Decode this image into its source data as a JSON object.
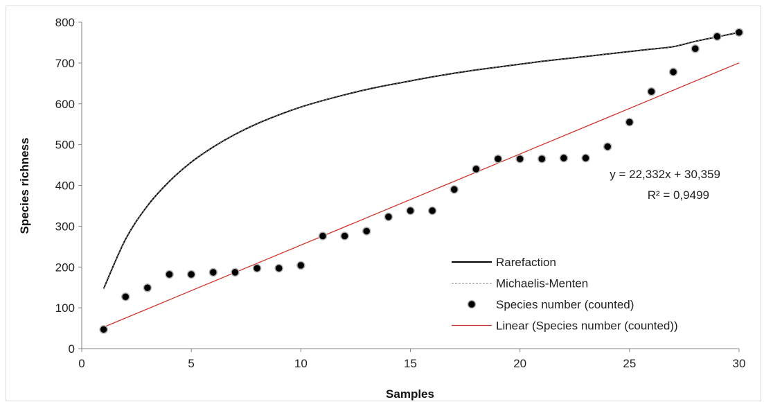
{
  "chart_data": {
    "type": "scatter",
    "title": "",
    "xlabel": "Samples",
    "ylabel": "Species richness",
    "xlim": [
      0,
      30
    ],
    "ylim": [
      0,
      800
    ],
    "xticks": [
      0,
      5,
      10,
      15,
      20,
      25,
      30
    ],
    "xtick_labels": [
      "0",
      "5",
      "10",
      "15",
      "20",
      "25",
      "30"
    ],
    "yticks": [
      0,
      100,
      200,
      300,
      400,
      500,
      600,
      700,
      800
    ],
    "ytick_labels": [
      "0",
      "100",
      "200",
      "300",
      "400",
      "500",
      "600",
      "700",
      "800"
    ],
    "grid": false,
    "legend_position": "bottom-right",
    "series": [
      {
        "name": "Rarefaction",
        "kind": "line",
        "color": "#000000",
        "x": [
          1,
          2,
          3,
          4,
          5,
          6,
          7,
          8,
          9,
          10,
          11,
          12,
          13,
          14,
          15,
          16,
          17,
          18,
          19,
          20,
          21,
          22,
          23,
          24,
          25,
          26,
          27,
          28,
          29,
          30
        ],
        "y": [
          147,
          268,
          350,
          410,
          457,
          494,
          525,
          551,
          573,
          592,
          608,
          622,
          635,
          646,
          656,
          666,
          675,
          683,
          690,
          697,
          704,
          710,
          716,
          722,
          728,
          734,
          740,
          753,
          764,
          775
        ]
      },
      {
        "name": "Michaelis-Menten",
        "kind": "dashed-line",
        "color": "#808080",
        "x": [
          1,
          2,
          3,
          4,
          5,
          6,
          7,
          8,
          9,
          10,
          11,
          12,
          13,
          14,
          15,
          16,
          17,
          18,
          19,
          20,
          21,
          22,
          23,
          24,
          25,
          26,
          27,
          28,
          29,
          30
        ],
        "y": [
          147,
          268,
          350,
          410,
          457,
          494,
          525,
          551,
          573,
          592,
          608,
          622,
          635,
          646,
          656,
          666,
          675,
          683,
          690,
          697,
          704,
          710,
          716,
          722,
          728,
          734,
          740,
          753,
          764,
          775
        ]
      },
      {
        "name": "Species number (counted)",
        "kind": "scatter",
        "color": "#000000",
        "x": [
          1,
          2,
          3,
          4,
          5,
          6,
          7,
          8,
          9,
          10,
          11,
          12,
          13,
          14,
          15,
          16,
          17,
          18,
          19,
          20,
          21,
          22,
          23,
          24,
          25,
          26,
          27,
          28,
          29,
          30
        ],
        "y": [
          47,
          127,
          149,
          182,
          182,
          187,
          187,
          197,
          197,
          204,
          276,
          276,
          288,
          323,
          338,
          338,
          390,
          440,
          465,
          465,
          465,
          467,
          467,
          495,
          555,
          630,
          678,
          735,
          765,
          775
        ]
      },
      {
        "name": "Linear (Species number (counted))",
        "kind": "trendline",
        "color": "#d0342c",
        "slope": 22.332,
        "intercept": 30.359,
        "x": [
          1,
          30
        ]
      }
    ],
    "annotations": [
      "y = 22,332x + 30,359",
      "R² = 0,9499"
    ]
  }
}
